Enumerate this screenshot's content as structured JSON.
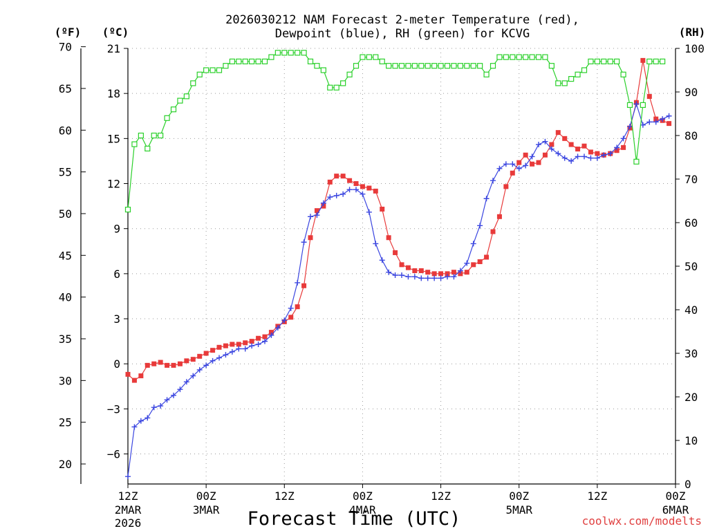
{
  "chart_data": {
    "type": "line",
    "title_line1": "2026030212 NAM Forecast 2-meter Temperature (red),",
    "title_line2": "Dewpoint (blue), RH (green) for KCVG",
    "xlabel": "Forecast Time (UTC)",
    "credit": "coolwx.com/modelts",
    "y_unit_f": "(ºF)",
    "y_unit_c": "(ºC)",
    "y_unit_rh": "(RH)",
    "ylim_c": [
      -8,
      21
    ],
    "ylim_rh": [
      0,
      100
    ],
    "yticks_f": [
      "20",
      "25",
      "30",
      "35",
      "40",
      "45",
      "50",
      "55",
      "60",
      "65",
      "70"
    ],
    "yticks_c": [
      "−6",
      "−3",
      "0",
      "3",
      "6",
      "9",
      "12",
      "15",
      "18",
      "21"
    ],
    "yticks_rh": [
      "0",
      "10",
      "20",
      "30",
      "40",
      "50",
      "60",
      "70",
      "80",
      "90",
      "100"
    ],
    "xlim_hours": [
      0,
      84
    ],
    "xticks": [
      {
        "hour": 0,
        "line1": "12Z",
        "line2": "2MAR",
        "line3": "2026"
      },
      {
        "hour": 12,
        "line1": "00Z",
        "line2": "3MAR",
        "line3": ""
      },
      {
        "hour": 24,
        "line1": "12Z",
        "line2": "",
        "line3": ""
      },
      {
        "hour": 36,
        "line1": "00Z",
        "line2": "4MAR",
        "line3": ""
      },
      {
        "hour": 48,
        "line1": "12Z",
        "line2": "",
        "line3": ""
      },
      {
        "hour": 60,
        "line1": "00Z",
        "line2": "5MAR",
        "line3": ""
      },
      {
        "hour": 72,
        "line1": "12Z",
        "line2": "",
        "line3": ""
      },
      {
        "hour": 84,
        "line1": "00Z",
        "line2": "6MAR",
        "line3": ""
      }
    ],
    "series": [
      {
        "name": "Temperature",
        "axis": "c",
        "color": "#e83a3a",
        "marker": "filled-square",
        "points": [
          [
            0,
            -0.7
          ],
          [
            1,
            -1.1
          ],
          [
            2,
            -0.8
          ],
          [
            3,
            -0.1
          ],
          [
            4,
            0.0
          ],
          [
            5,
            0.1
          ],
          [
            6,
            -0.1
          ],
          [
            7,
            -0.1
          ],
          [
            8,
            0.0
          ],
          [
            9,
            0.2
          ],
          [
            10,
            0.3
          ],
          [
            11,
            0.5
          ],
          [
            12,
            0.7
          ],
          [
            13,
            0.9
          ],
          [
            14,
            1.1
          ],
          [
            15,
            1.2
          ],
          [
            16,
            1.3
          ],
          [
            17,
            1.3
          ],
          [
            18,
            1.4
          ],
          [
            19,
            1.5
          ],
          [
            20,
            1.7
          ],
          [
            21,
            1.8
          ],
          [
            22,
            2.1
          ],
          [
            23,
            2.5
          ],
          [
            24,
            2.8
          ],
          [
            25,
            3.1
          ],
          [
            26,
            3.8
          ],
          [
            27,
            5.2
          ],
          [
            28,
            8.4
          ],
          [
            29,
            10.2
          ],
          [
            30,
            10.5
          ],
          [
            31,
            12.1
          ],
          [
            32,
            12.5
          ],
          [
            33,
            12.5
          ],
          [
            34,
            12.2
          ],
          [
            35,
            12.0
          ],
          [
            36,
            11.8
          ],
          [
            37,
            11.7
          ],
          [
            38,
            11.5
          ],
          [
            39,
            10.3
          ],
          [
            40,
            8.4
          ],
          [
            41,
            7.4
          ],
          [
            42,
            6.6
          ],
          [
            43,
            6.4
          ],
          [
            44,
            6.2
          ],
          [
            45,
            6.2
          ],
          [
            46,
            6.1
          ],
          [
            47,
            6.0
          ],
          [
            48,
            6.0
          ],
          [
            49,
            6.0
          ],
          [
            50,
            6.1
          ],
          [
            51,
            6.0
          ],
          [
            52,
            6.1
          ],
          [
            53,
            6.6
          ],
          [
            54,
            6.8
          ],
          [
            55,
            7.1
          ],
          [
            56,
            8.8
          ],
          [
            57,
            9.8
          ],
          [
            58,
            11.8
          ],
          [
            59,
            12.7
          ],
          [
            60,
            13.4
          ],
          [
            61,
            13.9
          ],
          [
            62,
            13.3
          ],
          [
            63,
            13.4
          ],
          [
            64,
            13.9
          ],
          [
            65,
            14.6
          ],
          [
            66,
            15.4
          ],
          [
            67,
            15.0
          ],
          [
            68,
            14.6
          ],
          [
            69,
            14.3
          ],
          [
            70,
            14.5
          ],
          [
            71,
            14.1
          ],
          [
            72,
            14.0
          ],
          [
            73,
            13.9
          ],
          [
            74,
            14.0
          ],
          [
            75,
            14.2
          ],
          [
            76,
            14.4
          ],
          [
            77,
            15.7
          ],
          [
            78,
            17.4
          ],
          [
            79,
            20.2
          ],
          [
            80,
            17.8
          ],
          [
            81,
            16.3
          ],
          [
            82,
            16.2
          ],
          [
            83,
            16.0
          ]
        ]
      },
      {
        "name": "Dewpoint",
        "axis": "c",
        "color": "#3a45e0",
        "marker": "plus",
        "points": [
          [
            0,
            -7.5
          ],
          [
            1,
            -4.2
          ],
          [
            2,
            -3.8
          ],
          [
            3,
            -3.6
          ],
          [
            4,
            -2.9
          ],
          [
            5,
            -2.8
          ],
          [
            6,
            -2.4
          ],
          [
            7,
            -2.1
          ],
          [
            8,
            -1.7
          ],
          [
            9,
            -1.2
          ],
          [
            10,
            -0.8
          ],
          [
            11,
            -0.4
          ],
          [
            12,
            -0.1
          ],
          [
            13,
            0.2
          ],
          [
            14,
            0.4
          ],
          [
            15,
            0.6
          ],
          [
            16,
            0.8
          ],
          [
            17,
            1.0
          ],
          [
            18,
            1.0
          ],
          [
            19,
            1.2
          ],
          [
            20,
            1.3
          ],
          [
            21,
            1.5
          ],
          [
            22,
            1.9
          ],
          [
            23,
            2.4
          ],
          [
            24,
            2.9
          ],
          [
            25,
            3.7
          ],
          [
            26,
            5.4
          ],
          [
            27,
            8.1
          ],
          [
            28,
            9.8
          ],
          [
            29,
            9.9
          ],
          [
            30,
            10.7
          ],
          [
            31,
            11.1
          ],
          [
            32,
            11.2
          ],
          [
            33,
            11.3
          ],
          [
            34,
            11.6
          ],
          [
            35,
            11.6
          ],
          [
            36,
            11.3
          ],
          [
            37,
            10.1
          ],
          [
            38,
            8.0
          ],
          [
            39,
            6.9
          ],
          [
            40,
            6.1
          ],
          [
            41,
            5.9
          ],
          [
            42,
            5.9
          ],
          [
            43,
            5.8
          ],
          [
            44,
            5.8
          ],
          [
            45,
            5.7
          ],
          [
            46,
            5.7
          ],
          [
            47,
            5.7
          ],
          [
            48,
            5.7
          ],
          [
            49,
            5.8
          ],
          [
            50,
            5.8
          ],
          [
            51,
            6.2
          ],
          [
            52,
            6.7
          ],
          [
            53,
            8.0
          ],
          [
            54,
            9.2
          ],
          [
            55,
            11.0
          ],
          [
            56,
            12.2
          ],
          [
            57,
            13.0
          ],
          [
            58,
            13.3
          ],
          [
            59,
            13.3
          ],
          [
            60,
            13.0
          ],
          [
            61,
            13.2
          ],
          [
            62,
            13.8
          ],
          [
            63,
            14.6
          ],
          [
            64,
            14.8
          ],
          [
            65,
            14.3
          ],
          [
            66,
            14.0
          ],
          [
            67,
            13.7
          ],
          [
            68,
            13.5
          ],
          [
            69,
            13.8
          ],
          [
            70,
            13.8
          ],
          [
            71,
            13.7
          ],
          [
            72,
            13.7
          ],
          [
            73,
            13.9
          ],
          [
            74,
            14.0
          ],
          [
            75,
            14.4
          ],
          [
            76,
            15.0
          ],
          [
            77,
            15.8
          ],
          [
            78,
            17.3
          ],
          [
            79,
            15.9
          ],
          [
            80,
            16.1
          ],
          [
            81,
            16.1
          ],
          [
            82,
            16.3
          ],
          [
            83,
            16.5
          ]
        ]
      },
      {
        "name": "RH",
        "axis": "rh",
        "color": "#2ad02a",
        "marker": "open-square",
        "points": [
          [
            0,
            63
          ],
          [
            1,
            78
          ],
          [
            2,
            80
          ],
          [
            3,
            77
          ],
          [
            4,
            80
          ],
          [
            5,
            80
          ],
          [
            6,
            84
          ],
          [
            7,
            86
          ],
          [
            8,
            88
          ],
          [
            9,
            89
          ],
          [
            10,
            92
          ],
          [
            11,
            94
          ],
          [
            12,
            95
          ],
          [
            13,
            95
          ],
          [
            14,
            95
          ],
          [
            15,
            96
          ],
          [
            16,
            97
          ],
          [
            17,
            97
          ],
          [
            18,
            97
          ],
          [
            19,
            97
          ],
          [
            20,
            97
          ],
          [
            21,
            97
          ],
          [
            22,
            98
          ],
          [
            23,
            99
          ],
          [
            24,
            99
          ],
          [
            25,
            99
          ],
          [
            26,
            99
          ],
          [
            27,
            99
          ],
          [
            28,
            97
          ],
          [
            29,
            96
          ],
          [
            30,
            95
          ],
          [
            31,
            91
          ],
          [
            32,
            91
          ],
          [
            33,
            92
          ],
          [
            34,
            94
          ],
          [
            35,
            96
          ],
          [
            36,
            98
          ],
          [
            37,
            98
          ],
          [
            38,
            98
          ],
          [
            39,
            97
          ],
          [
            40,
            96
          ],
          [
            41,
            96
          ],
          [
            42,
            96
          ],
          [
            43,
            96
          ],
          [
            44,
            96
          ],
          [
            45,
            96
          ],
          [
            46,
            96
          ],
          [
            47,
            96
          ],
          [
            48,
            96
          ],
          [
            49,
            96
          ],
          [
            50,
            96
          ],
          [
            51,
            96
          ],
          [
            52,
            96
          ],
          [
            53,
            96
          ],
          [
            54,
            96
          ],
          [
            55,
            94
          ],
          [
            56,
            96
          ],
          [
            57,
            98
          ],
          [
            58,
            98
          ],
          [
            59,
            98
          ],
          [
            60,
            98
          ],
          [
            61,
            98
          ],
          [
            62,
            98
          ],
          [
            63,
            98
          ],
          [
            64,
            98
          ],
          [
            65,
            96
          ],
          [
            66,
            92
          ],
          [
            67,
            92
          ],
          [
            68,
            93
          ],
          [
            69,
            94
          ],
          [
            70,
            95
          ],
          [
            71,
            97
          ],
          [
            72,
            97
          ],
          [
            73,
            97
          ],
          [
            74,
            97
          ],
          [
            75,
            97
          ],
          [
            76,
            94
          ],
          [
            77,
            87
          ],
          [
            78,
            74
          ],
          [
            79,
            87
          ],
          [
            80,
            97
          ],
          [
            81,
            97
          ],
          [
            82,
            97
          ]
        ]
      }
    ]
  }
}
